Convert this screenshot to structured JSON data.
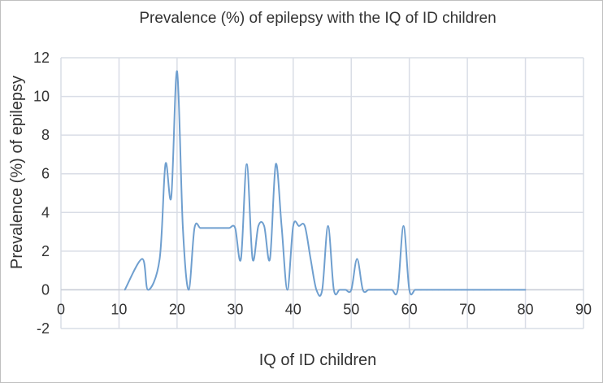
{
  "chart_data": {
    "type": "line",
    "title": "Prevalence (%) of epilepsy with the IQ of ID children",
    "xlabel": "IQ of ID children",
    "ylabel": "Prevalence (%) of epilepsy",
    "xlim": [
      0,
      90
    ],
    "ylim": [
      -2,
      12
    ],
    "x_ticks": [
      0,
      10,
      20,
      30,
      40,
      50,
      60,
      70,
      80,
      90
    ],
    "y_ticks": [
      -2,
      0,
      2,
      4,
      6,
      8,
      10,
      12
    ],
    "grid": true,
    "color": "#6f9fcf",
    "series": [
      {
        "x": [
          11,
          14,
          15,
          17,
          18,
          19,
          20,
          21,
          22,
          23,
          24,
          25,
          26,
          27,
          28,
          29,
          30,
          31,
          32,
          33,
          34,
          35,
          36,
          37,
          38,
          39,
          40,
          41,
          42,
          43,
          44,
          45,
          46,
          47,
          48,
          49,
          50,
          51,
          52,
          53,
          54,
          55,
          56,
          57,
          58,
          59,
          60,
          61,
          62,
          63,
          64,
          65,
          66,
          67,
          68,
          69,
          70,
          71,
          72,
          73,
          74,
          75,
          76,
          77,
          78,
          79,
          80
        ],
        "y": [
          0,
          1.6,
          0,
          1.6,
          6.5,
          4.8,
          11.3,
          3.2,
          0,
          3.2,
          3.2,
          3.2,
          3.2,
          3.2,
          3.2,
          3.2,
          3.2,
          1.6,
          6.5,
          1.6,
          3.3,
          3.3,
          1.6,
          6.5,
          3.3,
          0,
          3.3,
          3.3,
          3.3,
          1.6,
          0,
          0,
          3.3,
          0,
          0,
          0,
          0,
          1.6,
          0,
          0,
          0,
          0,
          0,
          0,
          0,
          3.3,
          0,
          0,
          0,
          0,
          0,
          0,
          0,
          0,
          0,
          0,
          0,
          0,
          0,
          0,
          0,
          0,
          0,
          0,
          0,
          0,
          0
        ]
      }
    ]
  }
}
